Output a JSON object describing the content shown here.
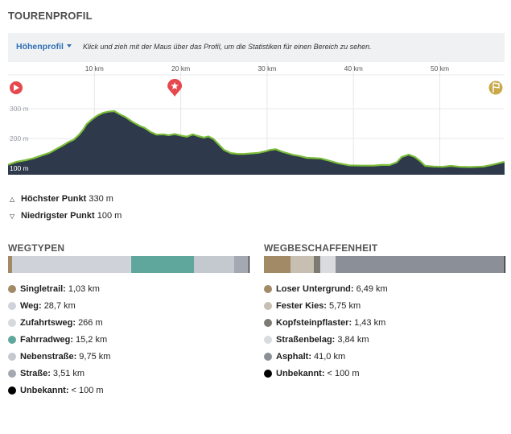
{
  "header": {
    "title": "TOURENPROFIL"
  },
  "toolbar": {
    "dropdown_label": "Höhenprofil",
    "hint": "Klick und zieh mit der Maus über das Profil, um die Statistiken für einen Bereich zu sehen."
  },
  "profile": {
    "km_ticks": [
      {
        "km": 10,
        "label": "10 km"
      },
      {
        "km": 20,
        "label": "20 km"
      },
      {
        "km": 30,
        "label": "30 km"
      },
      {
        "km": 40,
        "label": "40 km"
      },
      {
        "km": 50,
        "label": "50 km"
      }
    ],
    "elev_ticks": [
      {
        "m": 300,
        "label": "300 m"
      },
      {
        "m": 200,
        "label": "200 m"
      },
      {
        "m": 100,
        "label": "100 m"
      }
    ],
    "total_km": 57.5,
    "min_m": 100,
    "max_m": 330,
    "start_icon": "play-icon",
    "waypoint_icon": "star-icon",
    "waypoint_km": 19.3,
    "finish_icon": "finish-flag-icon",
    "fill_color": "#2e3a4b",
    "line_color": "#7bbd3a",
    "points": [
      [
        0,
        112
      ],
      [
        1,
        122
      ],
      [
        2,
        127
      ],
      [
        3,
        134
      ],
      [
        4,
        144
      ],
      [
        4.8,
        152
      ],
      [
        5.5,
        163
      ],
      [
        6.3,
        176
      ],
      [
        7,
        188
      ],
      [
        7.6,
        196
      ],
      [
        8.2,
        212
      ],
      [
        8.7,
        230
      ],
      [
        9.1,
        248
      ],
      [
        9.8,
        266
      ],
      [
        10.4,
        278
      ],
      [
        11,
        286
      ],
      [
        11.6,
        290
      ],
      [
        12.3,
        292
      ],
      [
        12.9,
        282
      ],
      [
        13.6,
        272
      ],
      [
        14.4,
        256
      ],
      [
        15.2,
        243
      ],
      [
        15.8,
        236
      ],
      [
        16.5,
        222
      ],
      [
        17.2,
        213
      ],
      [
        18,
        214
      ],
      [
        18.6,
        211
      ],
      [
        19.3,
        215
      ],
      [
        20,
        210
      ],
      [
        20.7,
        206
      ],
      [
        21.4,
        214
      ],
      [
        22,
        208
      ],
      [
        22.7,
        203
      ],
      [
        23.2,
        207
      ],
      [
        23.8,
        198
      ],
      [
        24.4,
        180
      ],
      [
        25,
        162
      ],
      [
        25.8,
        151
      ],
      [
        26.6,
        148
      ],
      [
        27.3,
        148
      ],
      [
        28.2,
        150
      ],
      [
        29,
        152
      ],
      [
        29.8,
        157
      ],
      [
        30.4,
        162
      ],
      [
        31,
        164
      ],
      [
        31.7,
        156
      ],
      [
        32.4,
        150
      ],
      [
        33,
        145
      ],
      [
        33.8,
        141
      ],
      [
        34.6,
        135
      ],
      [
        35.4,
        134
      ],
      [
        36.2,
        133
      ],
      [
        37,
        127
      ],
      [
        38.2,
        117
      ],
      [
        39.5,
        110
      ],
      [
        41,
        109
      ],
      [
        42.3,
        109
      ],
      [
        43.3,
        111
      ],
      [
        44.2,
        111
      ],
      [
        45,
        120
      ],
      [
        45.6,
        138
      ],
      [
        46.4,
        146
      ],
      [
        47.1,
        138
      ],
      [
        47.7,
        125
      ],
      [
        48.3,
        108
      ],
      [
        49.3,
        106
      ],
      [
        50.3,
        105
      ],
      [
        51.3,
        108
      ],
      [
        52.3,
        105
      ],
      [
        53.5,
        104
      ],
      [
        55.1,
        106
      ],
      [
        56.1,
        112
      ],
      [
        57.5,
        122
      ]
    ]
  },
  "stats": {
    "highest_label": "Höchster Punkt",
    "highest_value": "330 m",
    "lowest_label": "Niedrigster Punkt",
    "lowest_value": "100 m"
  },
  "wegtypen": {
    "title": "WEGTYPEN",
    "items": [
      {
        "label": "Singletrail:",
        "value": "1,03 km",
        "km": 1.03,
        "color": "#a38a67"
      },
      {
        "label": "Weg:",
        "value": "28,7 km",
        "km": 28.7,
        "color": "#cfd2d8"
      },
      {
        "label": "Zufahrtsweg:",
        "value": "266 m",
        "km": 0.266,
        "color": "#d5d8dd"
      },
      {
        "label": "Fahrradweg:",
        "value": "15,2 km",
        "km": 15.2,
        "color": "#5fa79c"
      },
      {
        "label": "Nebenstraße:",
        "value": "9,75 km",
        "km": 9.75,
        "color": "#c4c8cf"
      },
      {
        "label": "Straße:",
        "value": "3,51 km",
        "km": 3.51,
        "color": "#a4a8b0"
      },
      {
        "label": "Unbekannt:",
        "value": "< 100 m",
        "km": 0.05,
        "color": "#000000"
      }
    ]
  },
  "wegbeschaffenheit": {
    "title": "WEGBESCHAFFENHEIT",
    "items": [
      {
        "label": "Loser Untergrund:",
        "value": "6,49 km",
        "km": 6.49,
        "color": "#a38a67"
      },
      {
        "label": "Fester Kies:",
        "value": "5,75 km",
        "km": 5.75,
        "color": "#c7bfb2"
      },
      {
        "label": "Kopfsteinpflaster:",
        "value": "1,43 km",
        "km": 1.43,
        "color": "#7d7a73"
      },
      {
        "label": "Straßenbelag:",
        "value": "3,84 km",
        "km": 3.84,
        "color": "#d9dbde"
      },
      {
        "label": "Asphalt:",
        "value": "41,0 km",
        "km": 41.0,
        "color": "#8a8f98"
      },
      {
        "label": "Unbekannt:",
        "value": "< 100 m",
        "km": 0.05,
        "color": "#000000"
      }
    ]
  }
}
